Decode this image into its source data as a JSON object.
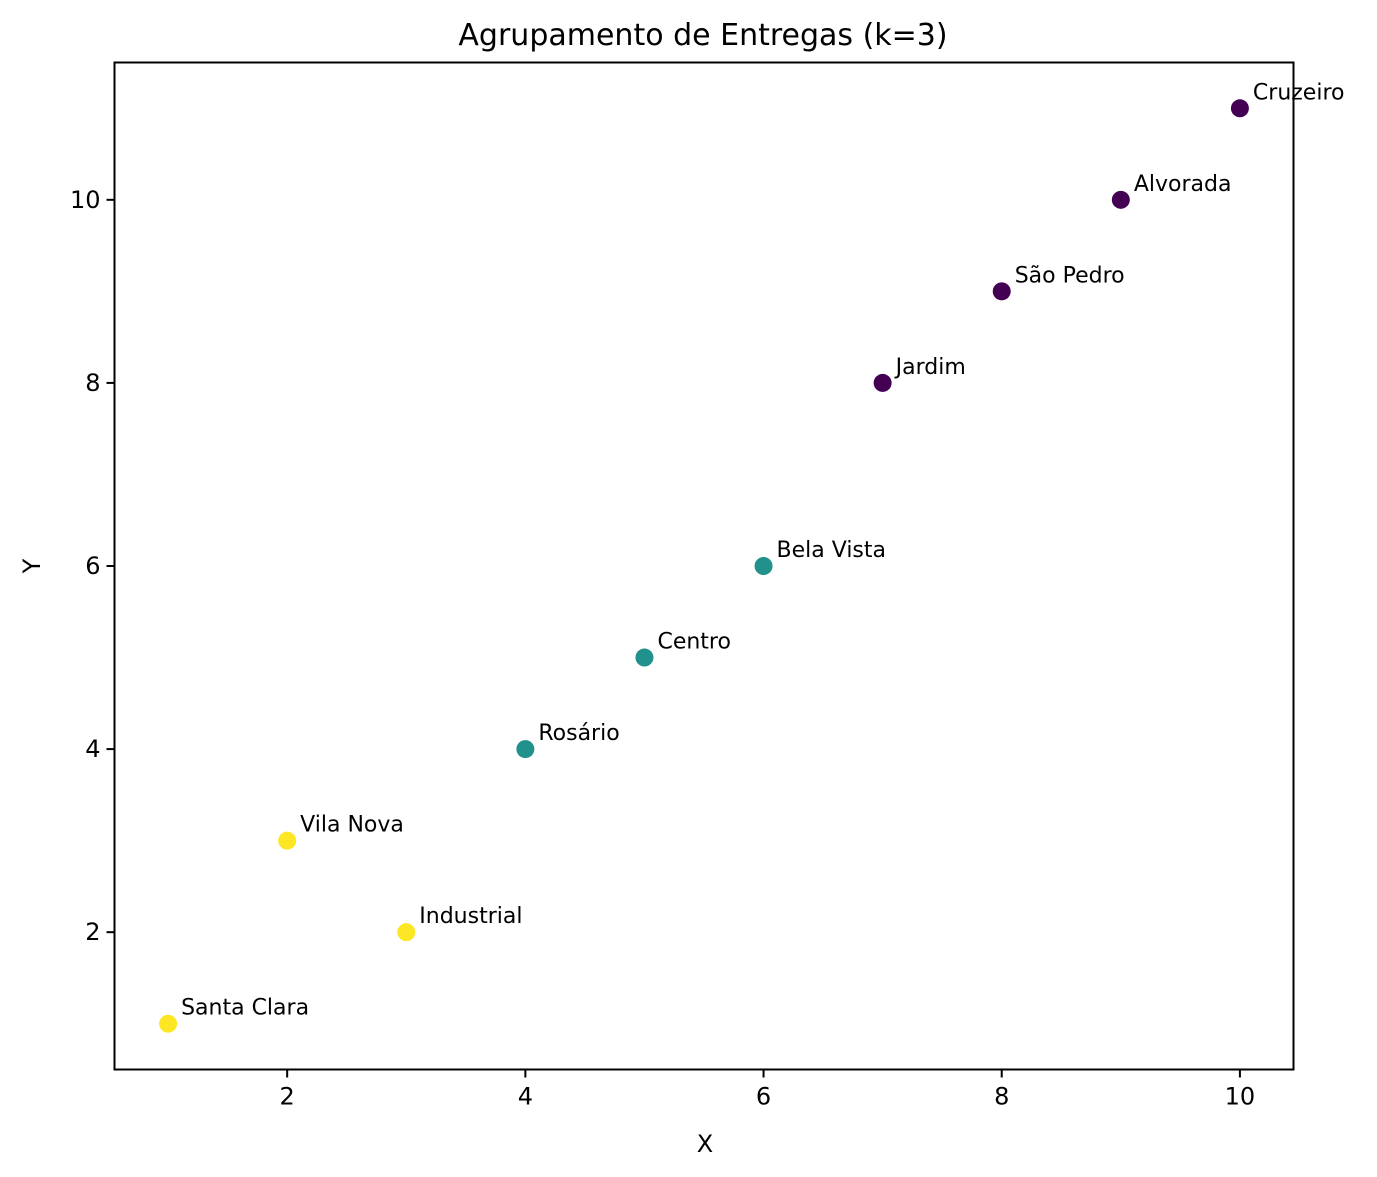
{
  "chart_data": {
    "type": "scatter",
    "title": "Agrupamento de Entregas (k=3)",
    "xlabel": "X",
    "ylabel": "Y",
    "xlim": [
      0.55,
      10.45
    ],
    "ylim": [
      0.5,
      11.5
    ],
    "xticks": [
      2,
      4,
      6,
      8,
      10
    ],
    "yticks": [
      2,
      4,
      6,
      8,
      10
    ],
    "grid": false,
    "legend": "none",
    "cluster_colors": [
      "#440154",
      "#21918c",
      "#fde725"
    ],
    "points": [
      {
        "label": "Santa Clara",
        "x": 1,
        "y": 1,
        "cluster": 2
      },
      {
        "label": "Vila Nova",
        "x": 2,
        "y": 3,
        "cluster": 2
      },
      {
        "label": "Industrial",
        "x": 3,
        "y": 2,
        "cluster": 2
      },
      {
        "label": "Rosário",
        "x": 4,
        "y": 4,
        "cluster": 1
      },
      {
        "label": "Centro",
        "x": 5,
        "y": 5,
        "cluster": 1
      },
      {
        "label": "Bela Vista",
        "x": 6,
        "y": 6,
        "cluster": 1
      },
      {
        "label": "Jardim",
        "x": 7,
        "y": 8,
        "cluster": 0
      },
      {
        "label": "São Pedro",
        "x": 8,
        "y": 9,
        "cluster": 0
      },
      {
        "label": "Alvorada",
        "x": 9,
        "y": 10,
        "cluster": 0
      },
      {
        "label": "Cruzeiro",
        "x": 10,
        "y": 11,
        "cluster": 0
      }
    ]
  }
}
